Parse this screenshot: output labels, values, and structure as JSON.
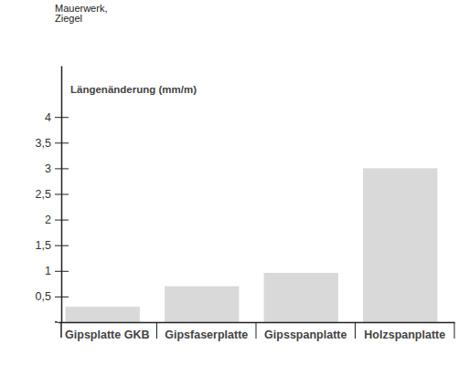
{
  "chart_data": {
    "type": "bar",
    "title": "Mauerwerk,\nZiegel",
    "y_label": "Längenänderung (mm/m)",
    "categories": [
      "Gipsplatte GKB",
      "Gipsfaserplatte",
      "Gipsspanplatte",
      "Holzspanplatte"
    ],
    "values": [
      0.3,
      0.7,
      0.96,
      3.0
    ],
    "color": "#d9d9d9",
    "ylim": [
      0,
      5
    ],
    "yticks": [
      {
        "value": 0.5,
        "label": "0,5"
      },
      1,
      {
        "value": 1.5,
        "label": "1,5"
      },
      2,
      {
        "value": 2.5,
        "label": "2,5"
      },
      3,
      {
        "value": 3.5,
        "label": "3,5"
      },
      4
    ],
    "grid": false
  }
}
